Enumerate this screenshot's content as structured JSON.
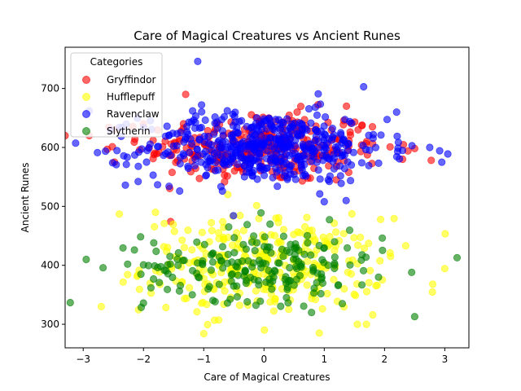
{
  "chart_data": {
    "type": "scatter",
    "title": "Care of Magical Creatures vs Ancient Runes",
    "xlabel": "Care of Magical Creatures",
    "ylabel": "Ancient Runes",
    "xlim": [
      -3.3,
      3.4
    ],
    "ylim": [
      260,
      770
    ],
    "xticks": [
      -3,
      -2,
      -1,
      0,
      1,
      2,
      3
    ],
    "yticks": [
      300,
      400,
      500,
      600,
      700
    ],
    "grid": false,
    "legend": {
      "title": "Categories",
      "placement": "top-left"
    },
    "series": [
      {
        "name": "Gryffindor",
        "color": "#ff0000",
        "count": 300,
        "x_mean": 0.0,
        "x_sd": 1.0,
        "y_mean": 600,
        "y_sd": 30,
        "points": [
          [
            -1.3,
            690
          ],
          [
            -2.0,
            640
          ],
          [
            -2.9,
            620
          ],
          [
            -3.3,
            620
          ],
          [
            -2.6,
            597
          ],
          [
            2.5,
            598
          ],
          [
            2.3,
            580
          ],
          [
            0.55,
            660
          ],
          [
            -0.35,
            590
          ],
          [
            1.2,
            545
          ]
        ]
      },
      {
        "name": "Hufflepuff",
        "color": "#ffff00",
        "count": 300,
        "x_mean": 0.0,
        "x_sd": 1.0,
        "y_mean": 400,
        "y_sd": 40,
        "points": [
          [
            -1.0,
            284
          ],
          [
            -2.4,
            487
          ],
          [
            -2.7,
            330
          ],
          [
            2.8,
            368
          ],
          [
            1.7,
            300
          ],
          [
            1.55,
            300
          ],
          [
            -1.8,
            490
          ],
          [
            0.3,
            360
          ],
          [
            -0.6,
            520
          ],
          [
            2.1,
            415
          ]
        ]
      },
      {
        "name": "Ravenclaw",
        "color": "#0000ff",
        "count": 500,
        "x_mean": 0.0,
        "x_sd": 1.0,
        "y_mean": 600,
        "y_sd": 30,
        "points": [
          [
            -1.1,
            746
          ],
          [
            3.05,
            589
          ],
          [
            2.95,
            575
          ],
          [
            2.75,
            600
          ],
          [
            -2.3,
            536
          ],
          [
            -1.4,
            526
          ],
          [
            1.0,
            508
          ],
          [
            0.9,
            691
          ],
          [
            2.2,
            660
          ],
          [
            -2.9,
            662
          ]
        ]
      },
      {
        "name": "Slytherin",
        "color": "#008000",
        "count": 200,
        "x_mean": 0.0,
        "x_sd": 1.0,
        "y_mean": 400,
        "y_sd": 30,
        "points": [
          [
            -2.95,
            410
          ],
          [
            2.5,
            313
          ],
          [
            2.45,
            388
          ],
          [
            -2.0,
            336
          ],
          [
            -0.05,
            489
          ],
          [
            -0.15,
            425
          ],
          [
            1.3,
            335
          ],
          [
            0.1,
            470
          ],
          [
            -2.15,
            426
          ],
          [
            1.9,
            380
          ]
        ]
      }
    ]
  }
}
